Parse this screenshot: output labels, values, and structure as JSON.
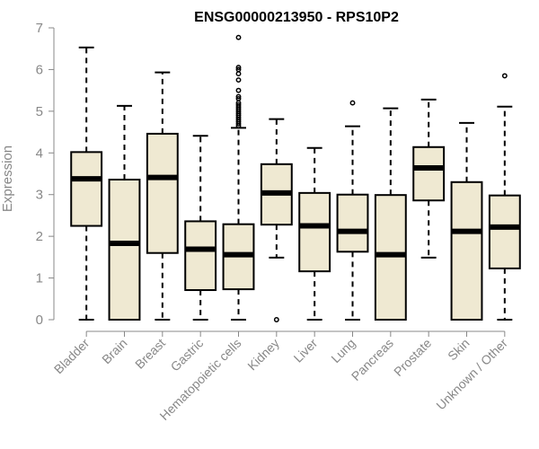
{
  "chart_data": {
    "type": "boxplot",
    "title": "ENSG00000213950 - RPS10P2",
    "ylabel": "Expression",
    "xlabel": "",
    "ylim": [
      0,
      7
    ],
    "yticks": [
      0,
      1,
      2,
      3,
      4,
      5,
      6,
      7
    ],
    "grid": false,
    "box_color": "#efe9d2",
    "categories": [
      "Bladder",
      "Brain",
      "Breast",
      "Gastric",
      "Hematopoietic cells",
      "Kidney",
      "Liver",
      "Lung",
      "Pancreas",
      "Prostate",
      "Skin",
      "Unknown / Other"
    ],
    "boxes": [
      {
        "min": 0.0,
        "q1": 2.25,
        "median": 3.38,
        "q3": 4.02,
        "max": 6.53,
        "outliers": []
      },
      {
        "min": 0.0,
        "q1": 0.0,
        "median": 1.83,
        "q3": 3.36,
        "max": 5.13,
        "outliers": []
      },
      {
        "min": 0.0,
        "q1": 1.6,
        "median": 3.41,
        "q3": 4.46,
        "max": 5.93,
        "outliers": []
      },
      {
        "min": 0.0,
        "q1": 0.71,
        "median": 1.69,
        "q3": 2.36,
        "max": 4.41,
        "outliers": []
      },
      {
        "min": 0.0,
        "q1": 0.73,
        "median": 1.56,
        "q3": 2.29,
        "max": 4.6,
        "outliers": [
          4.65,
          4.7,
          4.75,
          4.8,
          4.85,
          4.9,
          4.95,
          5.0,
          5.05,
          5.1,
          5.15,
          5.2,
          5.3,
          5.35,
          5.5,
          5.75,
          5.9,
          6.0,
          6.05,
          6.77
        ]
      },
      {
        "min": 1.49,
        "q1": 2.28,
        "median": 3.04,
        "q3": 3.73,
        "max": 4.81,
        "outliers": [
          0.0
        ]
      },
      {
        "min": 0.0,
        "q1": 1.16,
        "median": 2.25,
        "q3": 3.04,
        "max": 4.12,
        "outliers": []
      },
      {
        "min": 0.0,
        "q1": 1.63,
        "median": 2.12,
        "q3": 3.0,
        "max": 4.64,
        "outliers": [
          5.2
        ]
      },
      {
        "min": 0.0,
        "q1": 0.0,
        "median": 1.56,
        "q3": 2.99,
        "max": 5.07,
        "outliers": []
      },
      {
        "min": 1.49,
        "q1": 2.86,
        "median": 3.64,
        "q3": 4.14,
        "max": 5.28,
        "outliers": []
      },
      {
        "min": 0.0,
        "q1": 0.0,
        "median": 2.12,
        "q3": 3.3,
        "max": 4.72,
        "outliers": []
      },
      {
        "min": 0.0,
        "q1": 1.23,
        "median": 2.22,
        "q3": 2.98,
        "max": 5.11,
        "outliers": [
          5.85
        ]
      }
    ]
  }
}
